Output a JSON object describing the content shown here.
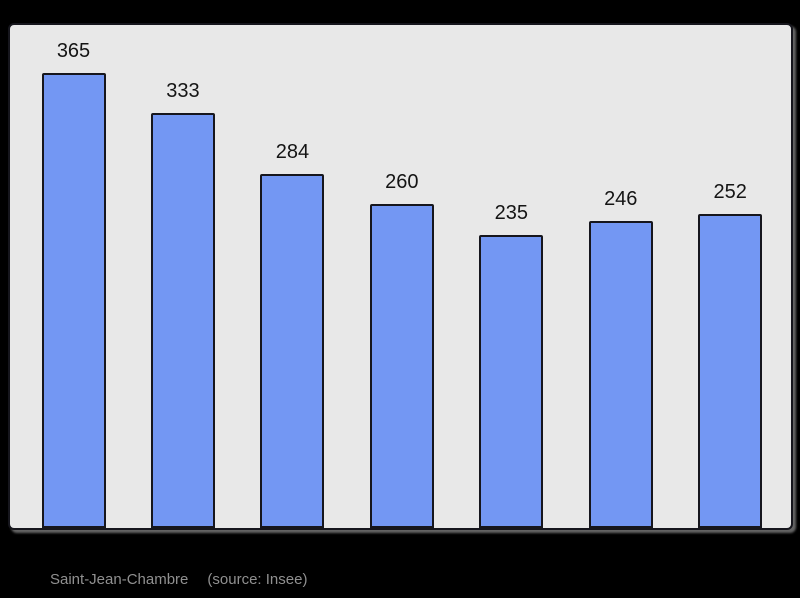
{
  "chart_data": {
    "type": "bar",
    "title": "",
    "values": [
      365,
      333,
      284,
      260,
      235,
      246,
      252
    ],
    "bar_value_labels": [
      "365",
      "333",
      "284",
      "260",
      "235",
      "246",
      "252"
    ],
    "categories_visible": false,
    "y_axis_visible": false,
    "grid": false,
    "legend": "none",
    "data_labels_position": "above-bars",
    "ylim": [
      0,
      405
    ],
    "caption": "Saint-Jean-Chambre",
    "source_note": "(source: Insee)",
    "colors": {
      "page_background": "#000000",
      "panel_background": "#e8e8e8",
      "panel_border": "#16161d",
      "bar_fill": "#7397f3",
      "bar_border": "#16161d",
      "label_color": "#141414",
      "caption_color": "#909090"
    }
  },
  "caption": {
    "commune": "Saint-Jean-Chambre",
    "source": "(source: Insee)"
  }
}
